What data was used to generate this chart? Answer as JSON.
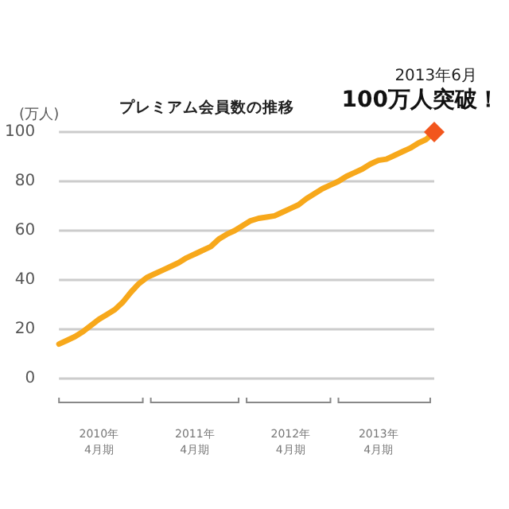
{
  "chart_data": {
    "type": "line",
    "title": "プレミアム会員数の推移",
    "ylabel": "(万人)",
    "categories": [
      null,
      null,
      null,
      null,
      null,
      "2010年\n4月期",
      null,
      null,
      null,
      null,
      null,
      null,
      null,
      null,
      null,
      null,
      null,
      "2011年\n4月期",
      null,
      null,
      null,
      null,
      null,
      null,
      null,
      null,
      null,
      null,
      null,
      "2012年\n4月期",
      null,
      null,
      null,
      null,
      null,
      null,
      null,
      null,
      null,
      null,
      "2013年\n4月期",
      null,
      null,
      null,
      null,
      null,
      null,
      null
    ],
    "series": [
      {
        "color": "#f7a81b",
        "values": [
          14,
          15.5,
          17,
          19,
          21.5,
          24,
          26,
          28,
          31,
          35,
          38.5,
          41,
          42.5,
          44,
          45.5,
          47,
          49,
          50.5,
          52,
          53.5,
          56.5,
          58.5,
          60,
          62,
          64,
          65,
          65.5,
          66,
          67.5,
          69,
          70.5,
          73,
          75,
          77,
          78.5,
          80,
          82,
          83.5,
          85,
          87,
          88.5,
          89,
          90.5,
          92,
          93.5,
          95.5,
          97,
          100
        ]
      }
    ],
    "ylim": [
      0,
      100
    ],
    "yticks": [
      0,
      20,
      40,
      60,
      80,
      100
    ],
    "grid": "y",
    "marker": "none",
    "line_style": "solid",
    "annotations": [
      "2013年6月",
      "100万人突破！"
    ]
  }
}
